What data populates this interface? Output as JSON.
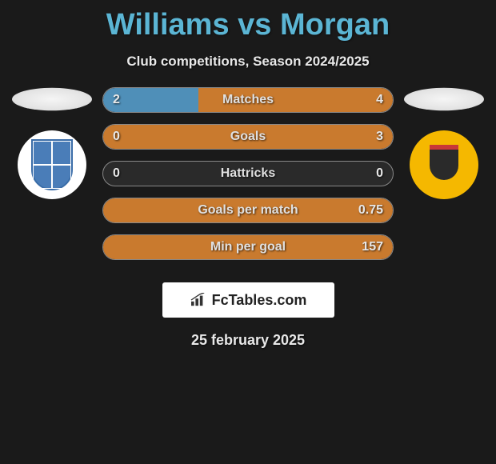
{
  "header": {
    "title": "Williams vs Morgan",
    "subtitle": "Club competitions, Season 2024/2025"
  },
  "left_player": {
    "name": "Williams",
    "club_badge": {
      "bg_color": "#ffffff",
      "shield_color": "#4a7db8"
    }
  },
  "right_player": {
    "name": "Morgan",
    "club_badge": {
      "bg_color": "#f5b800",
      "shield_color": "#2a2a2a"
    }
  },
  "stats": [
    {
      "label": "Matches",
      "left_value": "2",
      "right_value": "4",
      "left_pct": 33,
      "right_pct": 67,
      "left_color": "#4f8fb8",
      "right_color": "#c97a2e"
    },
    {
      "label": "Goals",
      "left_value": "0",
      "right_value": "3",
      "left_pct": 0,
      "right_pct": 100,
      "left_color": "#4f8fb8",
      "right_color": "#c97a2e"
    },
    {
      "label": "Hattricks",
      "left_value": "0",
      "right_value": "0",
      "left_pct": 0,
      "right_pct": 0,
      "left_color": "#4f8fb8",
      "right_color": "#c97a2e"
    },
    {
      "label": "Goals per match",
      "left_value": "",
      "right_value": "0.75",
      "left_pct": 0,
      "right_pct": 100,
      "left_color": "#4f8fb8",
      "right_color": "#c97a2e"
    },
    {
      "label": "Min per goal",
      "left_value": "",
      "right_value": "157",
      "left_pct": 0,
      "right_pct": 100,
      "left_color": "#4f8fb8",
      "right_color": "#c97a2e"
    }
  ],
  "brand": {
    "name": "FcTables.com"
  },
  "footer": {
    "date": "25 february 2025"
  },
  "colors": {
    "title_color": "#5bb5d4",
    "bar_bg": "#2a2a2a",
    "bar_border": "#888888"
  }
}
